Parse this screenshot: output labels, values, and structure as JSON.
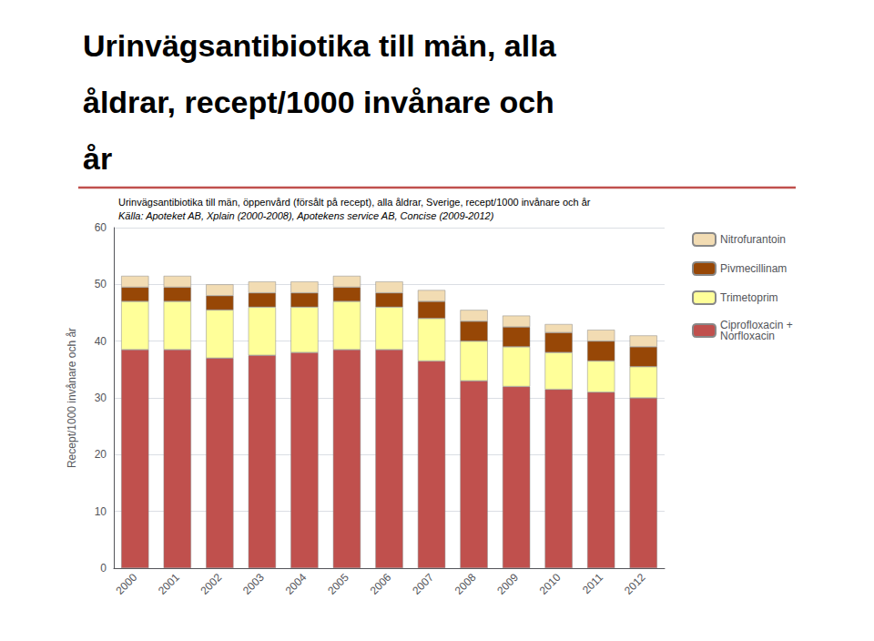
{
  "chart_data": {
    "type": "bar",
    "title": "Urinvägsantibiotika till män, alla\nåldrar, recept/1000 invånare och\når",
    "subtitle": "Urinvägsantibiotika till män, öppenvård (försålt på recept), alla åldrar, Sverige, recept/1000 invånare och år",
    "source": "Källa: Apoteket AB, Xplain (2000-2008), Apotekens service AB, Concise (2009-2012)",
    "ylabel": "Recept/1000 invånare och år",
    "categories": [
      "2000",
      "2001",
      "2002",
      "2003",
      "2004",
      "2005",
      "2006",
      "2007",
      "2008",
      "2009",
      "2010",
      "2011",
      "2012"
    ],
    "series": [
      {
        "name": "Ciprofloxacin +\nNorfloxacin",
        "color": "#c0504d",
        "values": [
          38.5,
          38.5,
          37.0,
          37.5,
          38.0,
          38.5,
          38.5,
          36.5,
          33.0,
          32.0,
          31.5,
          31.0,
          30.0
        ]
      },
      {
        "name": "Trimetoprim",
        "color": "#ffff99",
        "values": [
          8.5,
          8.5,
          8.5,
          8.5,
          8.0,
          8.5,
          7.5,
          7.5,
          7.0,
          7.0,
          6.5,
          5.5,
          5.5
        ]
      },
      {
        "name": "Pivmecillinam",
        "color": "#974706",
        "values": [
          2.5,
          2.5,
          2.5,
          2.5,
          2.5,
          2.5,
          2.5,
          3.0,
          3.5,
          3.5,
          3.5,
          3.5,
          3.5
        ]
      },
      {
        "name": "Nitrofurantoin",
        "color": "#f2dcb3",
        "values": [
          2.0,
          2.0,
          2.0,
          2.0,
          2.0,
          2.0,
          2.0,
          2.0,
          2.0,
          2.0,
          1.5,
          2.0,
          2.0
        ]
      }
    ],
    "stacked": true,
    "ylim": [
      0,
      60
    ],
    "yticks": [
      0,
      10,
      20,
      30,
      40,
      50,
      60
    ],
    "grid": true,
    "legend": "right"
  }
}
